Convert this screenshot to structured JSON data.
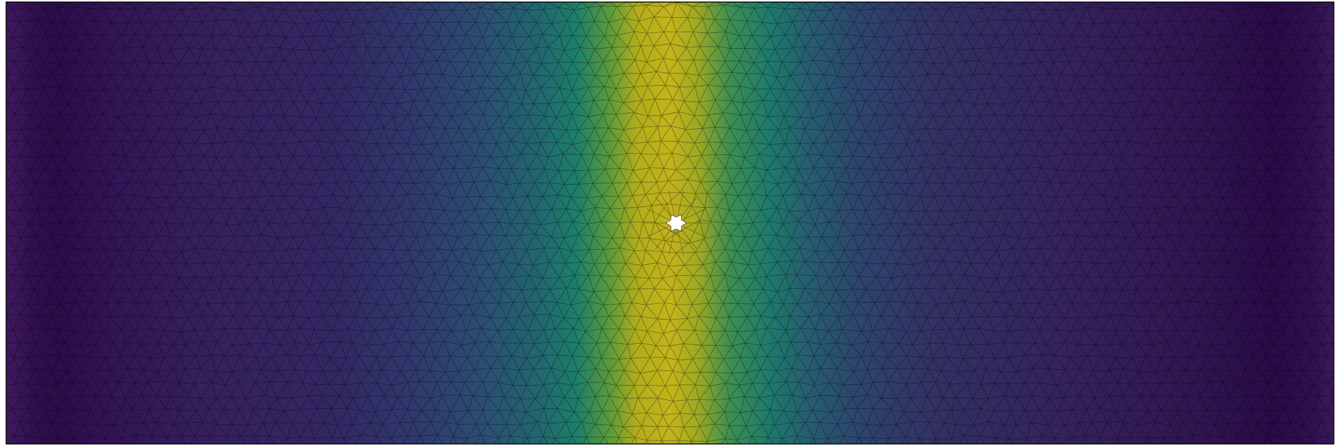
{
  "figure": {
    "kind": "finite-element mesh field plot",
    "colormap": "viridis",
    "colormap_stops": [
      "#440154",
      "#3b528b",
      "#21918c",
      "#5ec962",
      "#fde725"
    ],
    "field_levels": {
      "left_edge": 0.02,
      "left_band": 0.1,
      "center_peak": 0.82,
      "right_band": 0.1,
      "right_edge": 0.0
    },
    "mesh": {
      "element_type": "triangle",
      "edge_color": "#000000",
      "background_color": "#ffffff"
    },
    "feature": {
      "description": "hole",
      "fill_color": "#ffffff"
    }
  }
}
